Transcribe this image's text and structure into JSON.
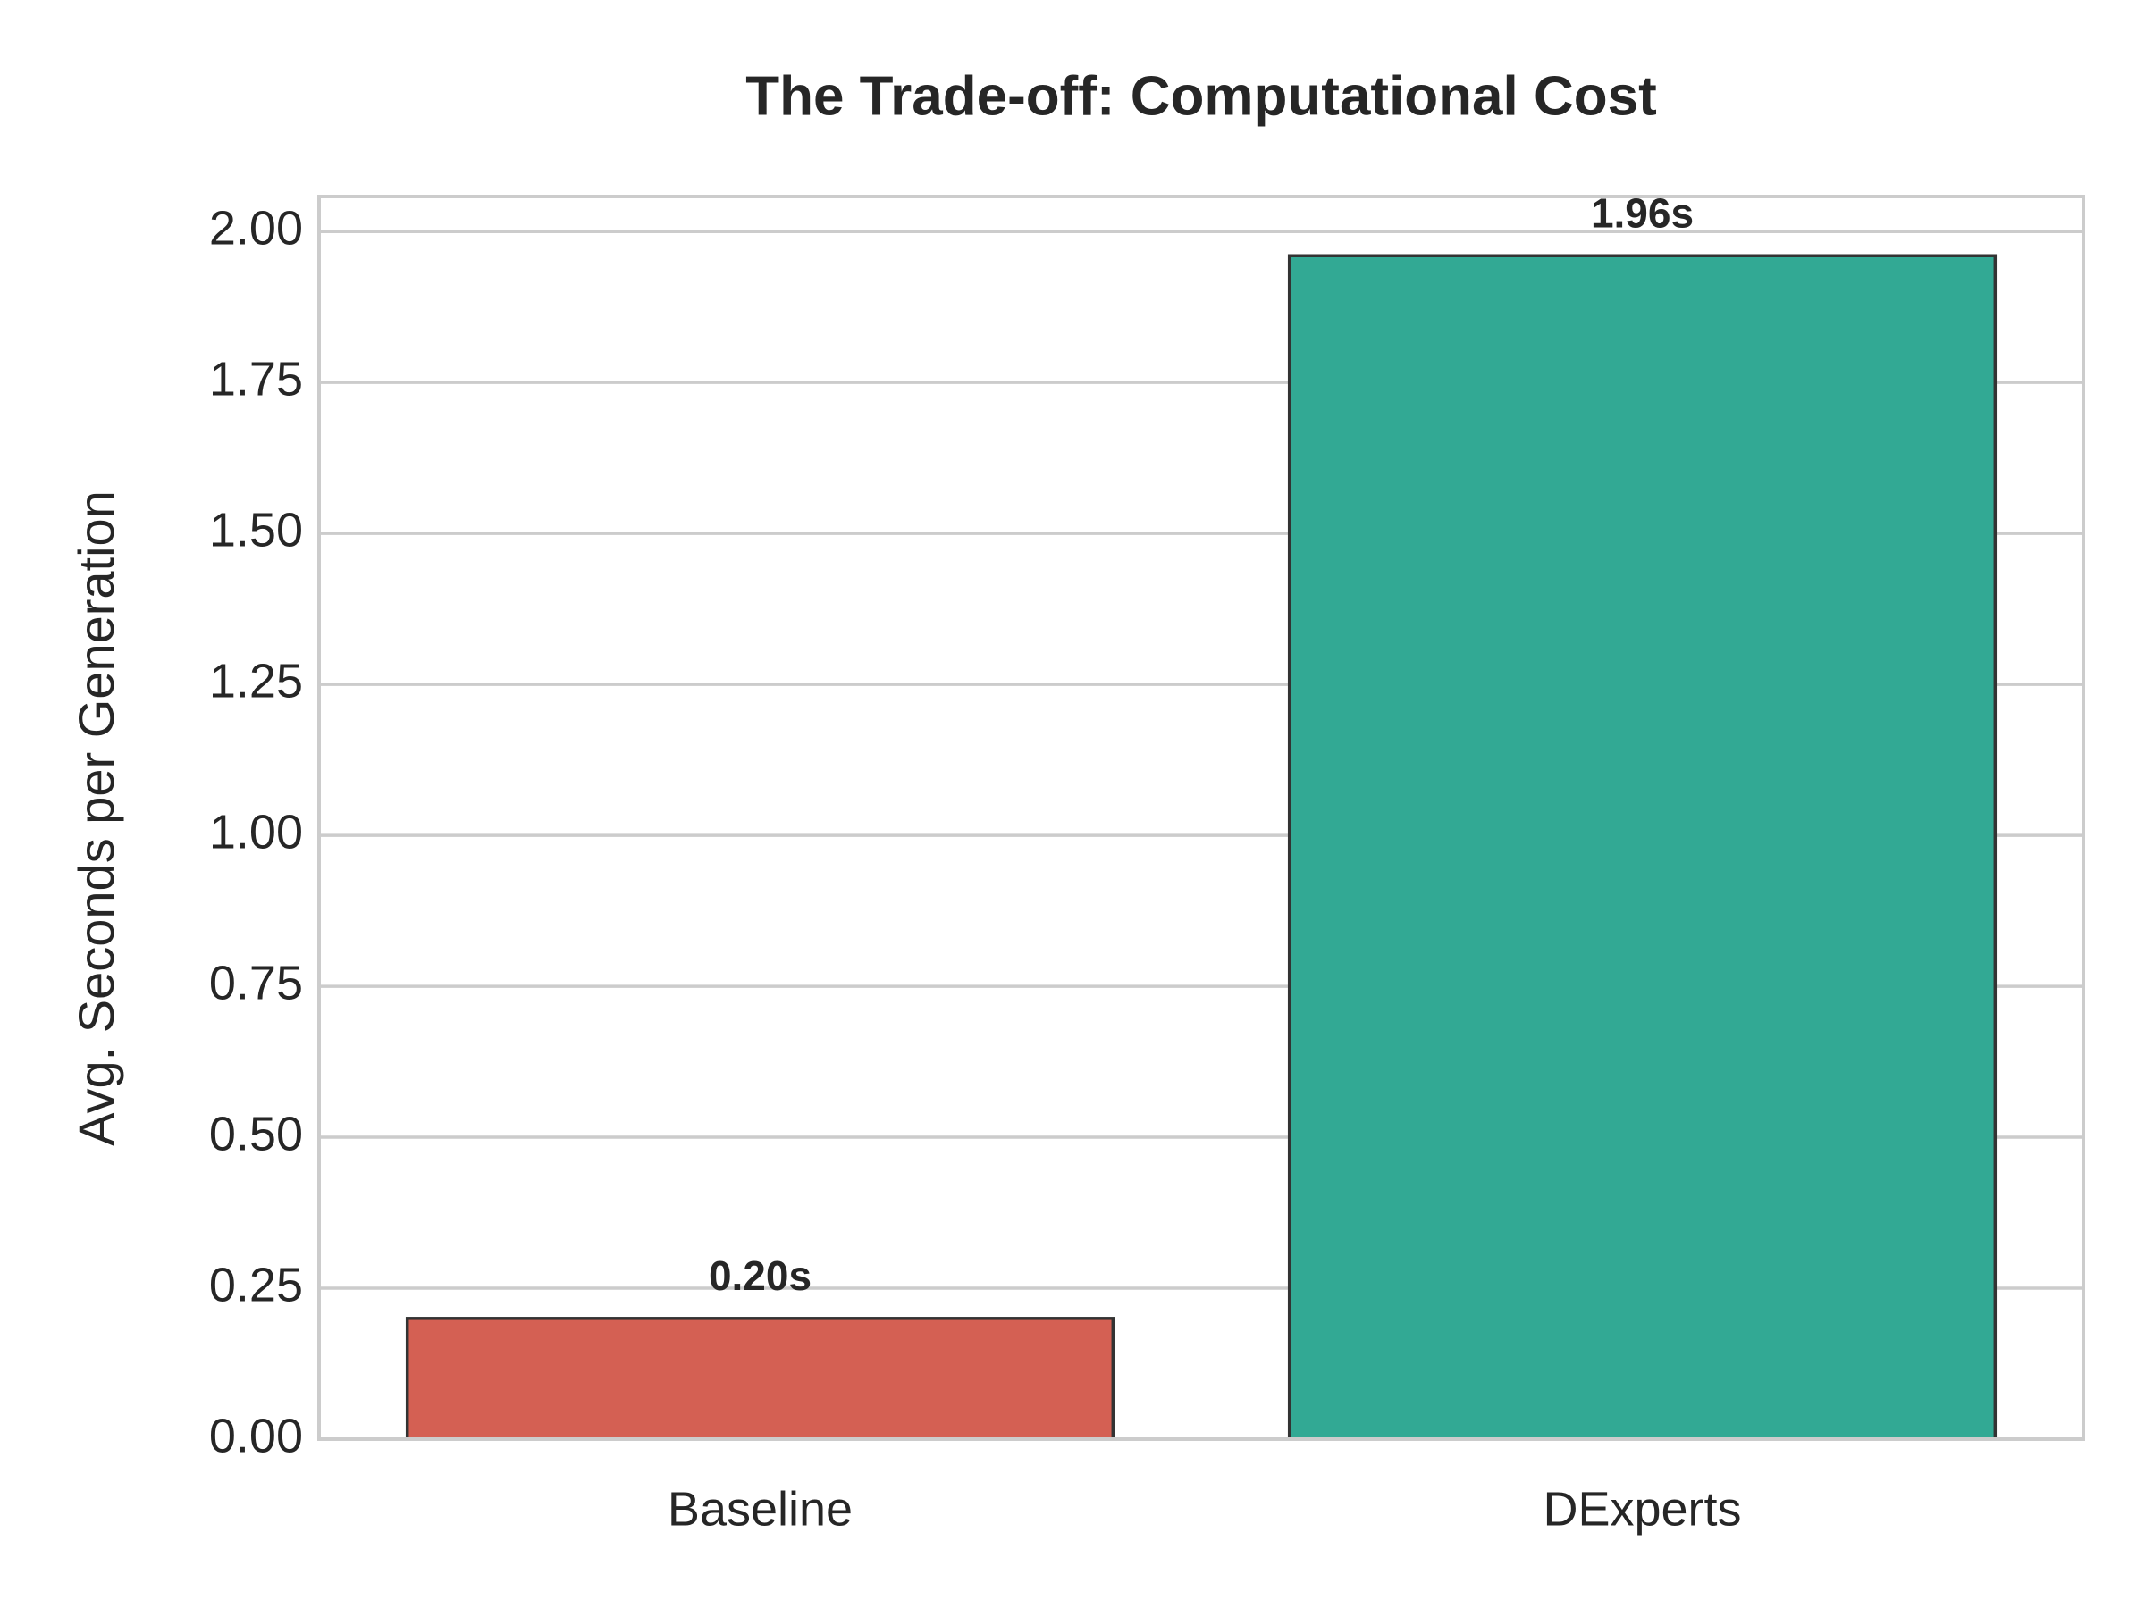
{
  "chart_data": {
    "type": "bar",
    "title": "The Trade-off: Computational Cost",
    "y_label": "Avg. Seconds per Generation",
    "categories": [
      "Baseline",
      "DExperts"
    ],
    "values": [
      0.2,
      1.96
    ],
    "value_labels": [
      "0.20s",
      "1.96s"
    ],
    "colors": [
      "#d46053",
      "#32a994"
    ],
    "ylim": [
      0,
      2.058
    ],
    "yticks": [
      {
        "value": 0,
        "label": "0.00"
      },
      {
        "value": 0.25,
        "label": "0.25"
      },
      {
        "value": 0.5,
        "label": "0.50"
      },
      {
        "value": 0.75,
        "label": "0.75"
      },
      {
        "value": 1,
        "label": "1.00"
      },
      {
        "value": 1.25,
        "label": "1.25"
      },
      {
        "value": 1.5,
        "label": "1.50"
      },
      {
        "value": 1.75,
        "label": "1.75"
      },
      {
        "value": 2,
        "label": "2.00"
      }
    ],
    "grid": true
  }
}
